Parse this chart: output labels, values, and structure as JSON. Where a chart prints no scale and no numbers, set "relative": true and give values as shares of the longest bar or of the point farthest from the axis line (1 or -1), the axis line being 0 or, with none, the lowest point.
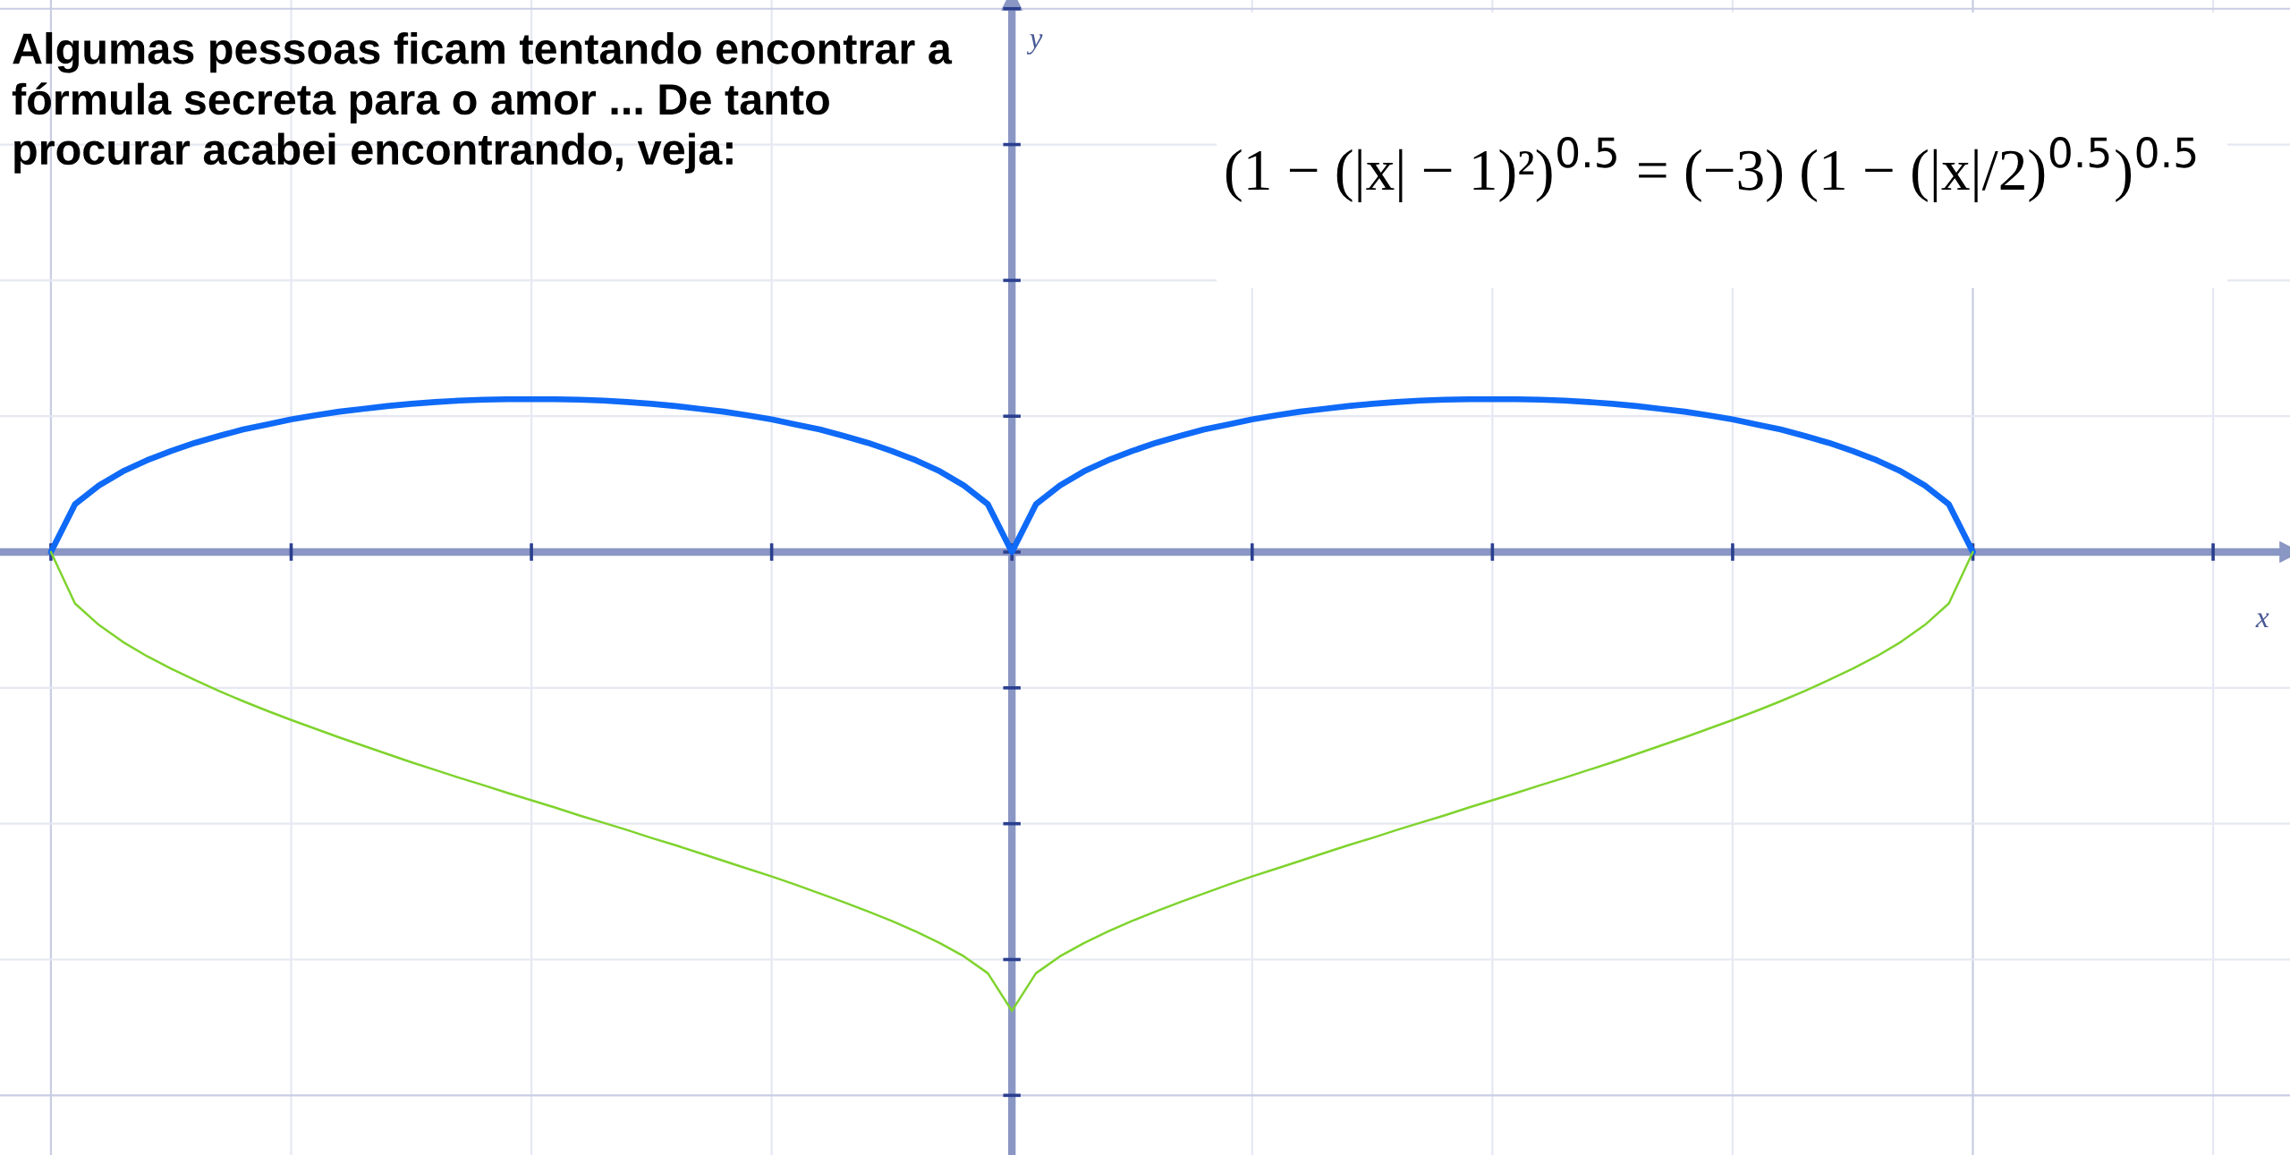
{
  "chart_data": {
    "type": "line",
    "title": "Algumas pessoas ficam tentando encontrar a fórmula secreta para o amor ... De tanto procurar acabei encontrando, veja:",
    "annotations": [
      "(1 − (|x| − 1)²)$^{0.5}$ = (−3) (1 − (|x|/2)$^{0.5}$)$^{0.5}$",
      "y"
    ],
    "xlabel": "x",
    "relative": true,
    "grid": true,
    "ref_lines": [
      {
        "axis": "y",
        "value": 0,
        "color": "#8a96c4"
      }
    ],
    "categories": [
      null,
      null,
      null,
      null,
      null,
      null,
      null,
      null,
      null,
      null,
      null,
      null,
      null,
      null,
      null,
      null,
      null,
      null,
      null,
      null,
      null,
      null,
      null,
      null,
      null,
      null,
      null,
      null,
      null,
      null,
      null,
      null,
      null,
      null,
      null,
      null,
      null,
      null,
      null,
      null,
      null,
      null,
      null,
      null,
      null,
      null,
      null,
      null,
      null,
      null,
      null,
      null,
      null,
      null,
      null,
      null,
      null,
      null,
      null,
      null,
      null,
      null,
      null,
      null,
      null,
      null,
      null,
      null,
      null,
      null,
      null,
      null,
      null,
      null,
      null,
      null,
      null,
      null,
      null,
      null,
      null,
      null,
      null,
      null,
      null,
      null,
      null,
      null,
      null,
      null,
      null,
      null,
      null,
      null,
      null,
      null
    ],
    "series": [
      {
        "color": "#0f6af7",
        "values": [
          null,
          null,
          0,
          0.104,
          0.145,
          0.176,
          0.2,
          0.22,
          0.238,
          0.253,
          0.267,
          0.278,
          0.289,
          0.298,
          0.306,
          0.312,
          0.318,
          0.323,
          0.327,
          0.33,
          0.332,
          0.333,
          0.333,
          0.333,
          0.332,
          0.33,
          0.327,
          0.323,
          0.318,
          0.312,
          0.306,
          0.298,
          0.289,
          0.278,
          0.267,
          0.253,
          0.238,
          0.22,
          0.2,
          0.176,
          0.145,
          0.104,
          0,
          0.104,
          0.145,
          0.176,
          0.2,
          0.22,
          0.238,
          0.253,
          0.267,
          0.278,
          0.289,
          0.298,
          0.306,
          0.312,
          0.318,
          0.323,
          0.327,
          0.33,
          0.332,
          0.333,
          0.333,
          0.333,
          0.332,
          0.33,
          0.327,
          0.323,
          0.318,
          0.312,
          0.306,
          0.298,
          0.289,
          0.278,
          0.267,
          0.253,
          0.238,
          0.22,
          0.2,
          0.176,
          0.145,
          0.104,
          0,
          null,
          null,
          null,
          null,
          null,
          null,
          null,
          null,
          null,
          null,
          null,
          null,
          null
        ]
      },
      {
        "color": "#7fd32e",
        "values": [
          null,
          null,
          0,
          -0.112,
          -0.159,
          -0.196,
          -0.227,
          -0.254,
          -0.279,
          -0.303,
          -0.325,
          -0.346,
          -0.366,
          -0.385,
          -0.404,
          -0.422,
          -0.44,
          -0.458,
          -0.475,
          -0.492,
          -0.508,
          -0.525,
          -0.541,
          -0.557,
          -0.574,
          -0.59,
          -0.606,
          -0.623,
          -0.639,
          -0.656,
          -0.673,
          -0.69,
          -0.707,
          -0.725,
          -0.744,
          -0.763,
          -0.783,
          -0.804,
          -0.827,
          -0.852,
          -0.881,
          -0.918,
          -1,
          -0.918,
          -0.881,
          -0.852,
          -0.827,
          -0.804,
          -0.783,
          -0.763,
          -0.744,
          -0.725,
          -0.707,
          -0.69,
          -0.673,
          -0.656,
          -0.639,
          -0.623,
          -0.606,
          -0.59,
          -0.574,
          -0.557,
          -0.541,
          -0.525,
          -0.508,
          -0.492,
          -0.475,
          -0.458,
          -0.44,
          -0.422,
          -0.404,
          -0.385,
          -0.366,
          -0.346,
          -0.325,
          -0.303,
          -0.279,
          -0.254,
          -0.227,
          -0.196,
          -0.159,
          -0.112,
          0,
          null,
          null,
          null,
          null,
          null,
          null,
          null,
          null,
          null,
          null,
          null,
          null,
          null
        ]
      }
    ]
  }
}
